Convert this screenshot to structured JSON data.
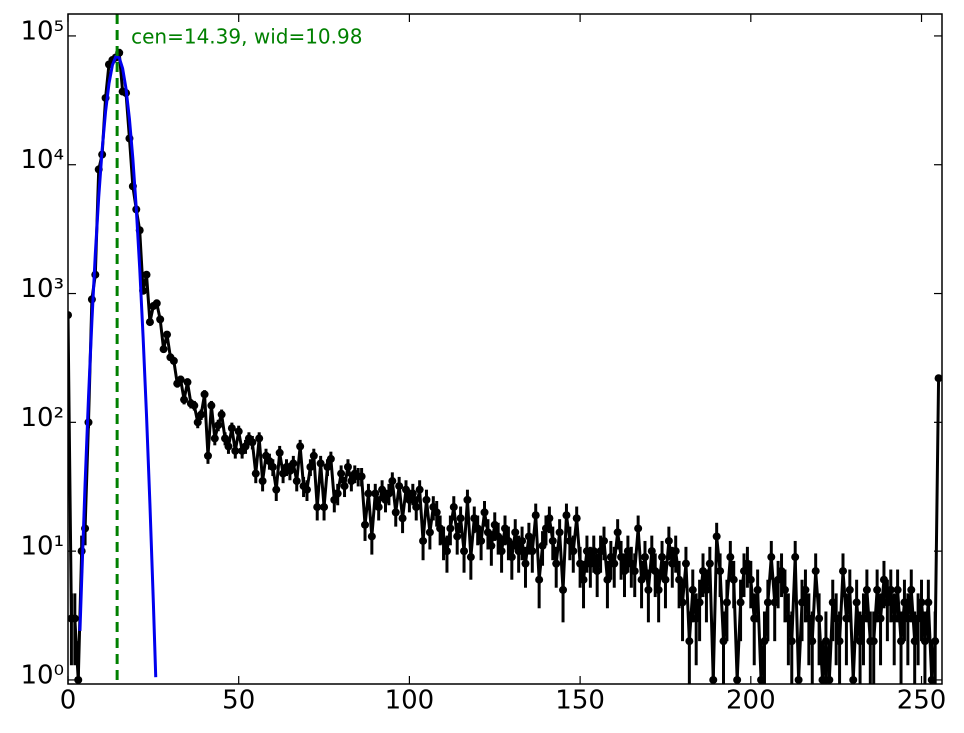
{
  "chart_data": {
    "type": "line",
    "log_y": true,
    "annotation": "cen=14.39, wid=10.98",
    "vline": {
      "x": 14.39,
      "color": "#008000"
    },
    "xlim": [
      0,
      256
    ],
    "ylim": [
      0.93,
      148000
    ],
    "xticks": [
      0,
      50,
      100,
      150,
      200,
      250
    ],
    "yticks": [
      {
        "value": 1,
        "label": "10⁰"
      },
      {
        "value": 10,
        "label": "10¹"
      },
      {
        "value": 100,
        "label": "10²"
      },
      {
        "value": 1000,
        "label": "10³"
      },
      {
        "value": 10000,
        "label": "10⁴"
      },
      {
        "value": 100000,
        "label": "10⁵"
      }
    ],
    "series": [
      {
        "color": "#000000",
        "x": [
          0,
          1,
          2,
          3,
          4,
          5,
          6,
          7,
          8,
          9,
          10,
          11,
          12,
          13,
          14,
          15,
          16,
          17,
          18,
          19,
          20,
          21,
          22,
          23,
          24,
          25,
          26,
          27,
          28,
          29,
          30,
          31,
          32,
          33,
          34,
          35,
          36,
          37,
          38,
          39,
          40,
          41,
          42,
          43,
          44,
          45,
          46,
          47,
          48,
          49,
          50,
          51,
          52,
          53,
          54,
          55,
          56,
          57,
          58,
          59,
          60,
          61,
          62,
          63,
          64,
          65,
          66,
          67,
          68,
          69,
          70,
          71,
          72,
          73,
          74,
          75,
          76,
          77,
          78,
          79,
          80,
          81,
          82,
          83,
          84,
          85,
          86,
          87,
          88,
          89,
          90,
          91,
          92,
          93,
          94,
          95,
          96,
          97,
          98,
          99,
          100,
          101,
          102,
          103,
          104,
          105,
          106,
          107,
          108,
          109,
          110,
          111,
          112,
          113,
          114,
          115,
          116,
          117,
          118,
          119,
          120,
          121,
          122,
          123,
          124,
          125,
          126,
          127,
          128,
          129,
          130,
          131,
          132,
          133,
          134,
          135,
          136,
          137,
          138,
          139,
          140,
          141,
          142,
          143,
          144,
          145,
          146,
          147,
          148,
          149,
          150,
          151,
          152,
          153,
          154,
          155,
          156,
          157,
          158,
          159,
          160,
          161,
          162,
          163,
          164,
          165,
          166,
          167,
          168,
          169,
          170,
          171,
          172,
          173,
          174,
          175,
          176,
          177,
          178,
          179,
          180,
          181,
          182,
          183,
          184,
          185,
          186,
          187,
          188,
          189,
          190,
          191,
          192,
          193,
          194,
          195,
          196,
          197,
          198,
          199,
          200,
          201,
          202,
          203,
          204,
          205,
          206,
          207,
          208,
          209,
          210,
          211,
          212,
          213,
          214,
          215,
          216,
          217,
          218,
          219,
          220,
          221,
          222,
          223,
          224,
          225,
          226,
          227,
          228,
          229,
          230,
          231,
          232,
          233,
          234,
          235,
          236,
          237,
          238,
          239,
          240,
          241,
          242,
          243,
          244,
          245,
          246,
          247,
          248,
          249,
          250,
          251,
          252,
          253,
          254,
          255
        ],
        "values": [
          680,
          3,
          3,
          1,
          10,
          15,
          100,
          900,
          1400,
          9200,
          12000,
          33000,
          60000,
          65000,
          68000,
          74000,
          37000,
          36000,
          16000,
          6800,
          4500,
          3100,
          1050,
          1400,
          600,
          800,
          840,
          630,
          370,
          480,
          320,
          300,
          200,
          215,
          150,
          205,
          140,
          135,
          100,
          115,
          165,
          55,
          135,
          75,
          95,
          115,
          75,
          65,
          90,
          60,
          85,
          60,
          65,
          75,
          70,
          40,
          75,
          35,
          55,
          50,
          45,
          30,
          58,
          40,
          45,
          42,
          48,
          35,
          65,
          32,
          30,
          45,
          55,
          22,
          48,
          22,
          45,
          52,
          25,
          28,
          40,
          32,
          45,
          35,
          40,
          38,
          38,
          16,
          28,
          13,
          28,
          22,
          30,
          25,
          28,
          35,
          20,
          32,
          18,
          30,
          25,
          28,
          22,
          30,
          12,
          25,
          14,
          22,
          20,
          15,
          12,
          10,
          15,
          22,
          13,
          18,
          10,
          25,
          9,
          18,
          15,
          12,
          20,
          14,
          11,
          16,
          13,
          10,
          15,
          12,
          9,
          14,
          10,
          12,
          8,
          13,
          10,
          19,
          6,
          11,
          15,
          18,
          12,
          8,
          14,
          5,
          19,
          12,
          10,
          18,
          8,
          6,
          10,
          8,
          10,
          7,
          10,
          12,
          6,
          9,
          8,
          14,
          9,
          7,
          10,
          8,
          7,
          15,
          6,
          9,
          5,
          10,
          7,
          5,
          9,
          6,
          12,
          8,
          10,
          6,
          4,
          8,
          2,
          5,
          3,
          4,
          7,
          5,
          8,
          1,
          13,
          7,
          2,
          4,
          9,
          6,
          1,
          4,
          7,
          8,
          6,
          3,
          5,
          1,
          2,
          4,
          9,
          4,
          6,
          7,
          5,
          3,
          2,
          9,
          1,
          4,
          5,
          3,
          2,
          7,
          3,
          1,
          2,
          1,
          4,
          3,
          2,
          7,
          3,
          5,
          1,
          4,
          2,
          3,
          5,
          2,
          2,
          5,
          3,
          6,
          4,
          5,
          3,
          5,
          2,
          4,
          3,
          5,
          2,
          3,
          4,
          2,
          4,
          1,
          2,
          220
        ],
        "errors": [
          26.1,
          1.7,
          1.7,
          1,
          3.2,
          3.9,
          10,
          30,
          37.4,
          95.9,
          109.5,
          181.7,
          244.9,
          255,
          260.8,
          272,
          192.4,
          189.7,
          126.5,
          82.5,
          67.1,
          55.7,
          32.4,
          37.4,
          24.5,
          28.3,
          29,
          25.1,
          19.2,
          21.9,
          17.9,
          17.3,
          14.1,
          14.7,
          12.2,
          14.3,
          11.8,
          11.6,
          10,
          10.7,
          12.8,
          7.4,
          11.6,
          8.7,
          9.7,
          10.7,
          8.7,
          8.1,
          9.5,
          7.7,
          9.2,
          7.7,
          8.1,
          8.7,
          8.4,
          6.3,
          8.7,
          5.9,
          7.4,
          7.1,
          6.7,
          5.5,
          7.6,
          6.3,
          6.7,
          6.5,
          6.9,
          5.9,
          8.1,
          5.7,
          5.5,
          6.7,
          7.4,
          4.7,
          6.9,
          4.7,
          6.7,
          7.2,
          5,
          5.3,
          6.3,
          5.7,
          6.7,
          5.9,
          6.3,
          6.2,
          6.2,
          4,
          5.3,
          3.6,
          5.3,
          4.7,
          5.5,
          5,
          5.3,
          5.9,
          4.5,
          5.7,
          4.2,
          5.5,
          5,
          5.3,
          4.7,
          5.5,
          3.5,
          5,
          3.7,
          4.7,
          4.5,
          3.9,
          3.5,
          3.2,
          3.9,
          4.7,
          3.6,
          4.2,
          3.2,
          5,
          3,
          4.2,
          3.9,
          3.5,
          4.5,
          3.7,
          3.3,
          4,
          3.6,
          3.2,
          3.9,
          3.5,
          3,
          3.7,
          3.2,
          3.5,
          2.8,
          3.6,
          3.2,
          4.4,
          2.4,
          3.3,
          3.9,
          4.2,
          3.5,
          2.8,
          3.7,
          2.2,
          4.4,
          3.5,
          3.2,
          4.2,
          2.8,
          2.4,
          3.2,
          2.8,
          3.2,
          2.6,
          3.2,
          3.5,
          2.4,
          3,
          2.8,
          3.7,
          3,
          2.6,
          3.2,
          2.8,
          2.6,
          3.9,
          2.4,
          3,
          2.2,
          3.2,
          2.6,
          2.2,
          3,
          2.4,
          3.5,
          2.8,
          3.2,
          2.4,
          2,
          2.8,
          1.4,
          2.2,
          1.7,
          2,
          2.6,
          2.2,
          2.8,
          1,
          3.6,
          2.6,
          1.4,
          2,
          3,
          2.4,
          1,
          2,
          2.6,
          2.8,
          2.4,
          1.7,
          2.2,
          1,
          1.4,
          2,
          3,
          2,
          2.4,
          2.6,
          2.2,
          1.7,
          1.4,
          3,
          1,
          2,
          2.2,
          1.7,
          1.4,
          2.6,
          1.7,
          1,
          1.4,
          1,
          2,
          1.7,
          1.4,
          2.6,
          1.7,
          2.2,
          1,
          2,
          1.4,
          1.7,
          2.2,
          1.4,
          1.4,
          2.2,
          1.7,
          2.4,
          2,
          2.2,
          1.7,
          2.2,
          1.4,
          2,
          1.7,
          2.2,
          1.4,
          1.7,
          2,
          1.4,
          2,
          1,
          1.4,
          14.8
        ]
      },
      {
        "color": "#0000ee",
        "x": [
          3.5,
          4,
          5,
          6,
          7,
          8,
          9,
          10,
          11,
          12,
          13,
          14,
          15,
          16,
          17,
          18,
          19,
          20,
          21,
          22,
          23,
          24,
          25,
          25.7
        ],
        "values": [
          2.4,
          5.9,
          33,
          155,
          612,
          2030,
          5630,
          13100,
          25800,
          42600,
          59200,
          69100,
          67800,
          55900,
          38800,
          22600,
          11100,
          4560,
          1580,
          458,
          113,
          23,
          4,
          1.05
        ]
      }
    ]
  }
}
